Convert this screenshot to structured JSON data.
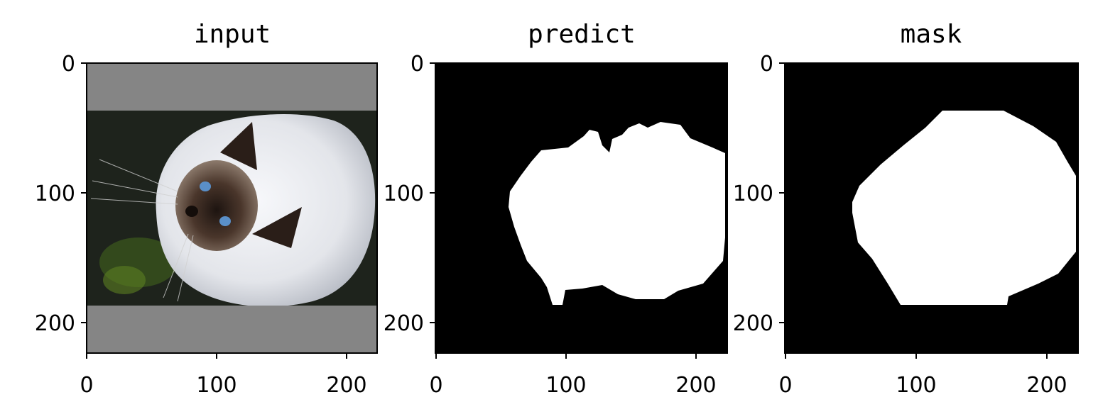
{
  "panels": [
    {
      "id": "input",
      "title": "input",
      "x_ticks": [
        "0",
        "100",
        "200"
      ],
      "y_ticks": [
        "0",
        "100",
        "200"
      ],
      "content": "photo-cat"
    },
    {
      "id": "predict",
      "title": "predict",
      "x_ticks": [
        "0",
        "100",
        "200"
      ],
      "y_ticks": [
        "0",
        "100",
        "200"
      ],
      "content": "binary-mask"
    },
    {
      "id": "mask",
      "title": "mask",
      "x_ticks": [
        "0",
        "100",
        "200"
      ],
      "y_ticks": [
        "0",
        "100",
        "200"
      ],
      "content": "binary-mask"
    }
  ],
  "colors": {
    "padding_gray": "#858585",
    "photo_background": "#1e231c",
    "cat_fur": "#e4e6ea",
    "cat_face": "#3b2a22",
    "eye": "#5a8fc8",
    "mask_background": "#000000",
    "mask_foreground": "#ffffff"
  }
}
